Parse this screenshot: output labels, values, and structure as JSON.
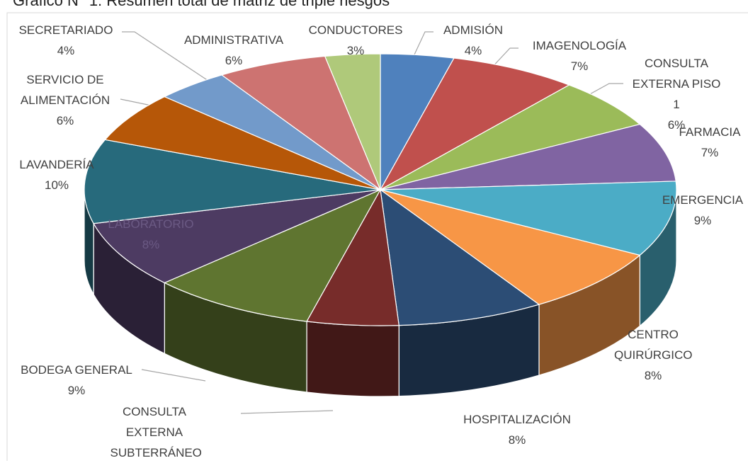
{
  "chart_data": {
    "type": "pie3d",
    "title": "Gráfico N° 1: Resumen total de matriz de triple riesgos",
    "categories": [
      "ADMISIÓN",
      "IMAGENOLOGÍA",
      "CONSULTA EXTERNA PISO 1",
      "FARMACIA",
      "EMERGENCIA",
      "CENTRO QUIRÚRGICO",
      "HOSPITALIZACIÓN",
      "CONSULTA EXTERNA SUBTERRÁNEO",
      "BODEGA GENERAL",
      "LABORATORIO",
      "LAVANDERÍA",
      "SERVICIO DE ALIMENTACIÓN",
      "SECRETARIADO",
      "ADMINISTRATIVA",
      "CONDUCTORES"
    ],
    "values": [
      4,
      7,
      6,
      7,
      9,
      8,
      8,
      5,
      9,
      8,
      10,
      6,
      4,
      6,
      3
    ],
    "value_labels": [
      "4%",
      "7%",
      "6%",
      "7%",
      "9%",
      "8%",
      "8%",
      null,
      "9%",
      "8%",
      "10%",
      "6%",
      "4%",
      "6%",
      "3%"
    ],
    "colors": [
      "#4f81bd",
      "#c0504d",
      "#9bbb59",
      "#8064a2",
      "#4bacc6",
      "#f79646",
      "#2c4d75",
      "#772c2a",
      "#5f7530",
      "#4d3b62",
      "#276a7c",
      "#b65708",
      "#729aca",
      "#cd7371",
      "#afc97a"
    ]
  }
}
